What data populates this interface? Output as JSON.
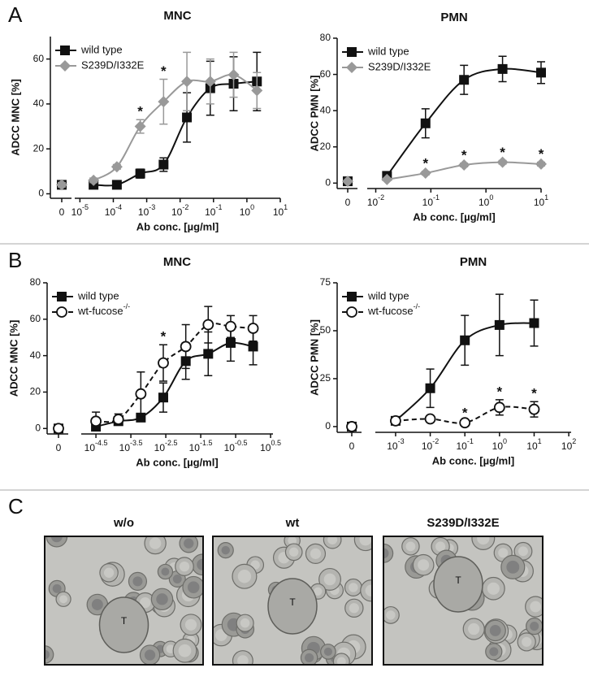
{
  "panel_labels": [
    "A",
    "B",
    "C"
  ],
  "chart_data": [
    {
      "type": "line",
      "title": "MNC",
      "x_label": "Ab conc. [µg/ml]",
      "y_label": "ADCC MNC [%]",
      "x_scale": "log",
      "legend": "upper left",
      "x": [
        0,
        2.56e-05,
        0.000128,
        0.00064,
        0.0032,
        0.016,
        0.08,
        0.4,
        2
      ],
      "xlim": [
        7e-06,
        10
      ],
      "xticks": [
        0,
        {
          "value": 1e-05,
          "label": "10-5"
        },
        {
          "value": 0.0001,
          "label": "10-4"
        },
        {
          "value": 0.001,
          "label": "10-3"
        },
        {
          "value": 0.01,
          "label": "10-2"
        },
        {
          "value": 0.1,
          "label": "10-1"
        },
        {
          "value": 1,
          "label": "100"
        },
        {
          "value": 10,
          "label": "101"
        }
      ],
      "ylim": [
        -2,
        70
      ],
      "yticks": [
        0,
        20,
        40,
        60
      ],
      "series": [
        {
          "name": "wild type",
          "color": "#111111",
          "marker": "square",
          "dash": false,
          "values": [
            4,
            4,
            4,
            9,
            13,
            34,
            47,
            49,
            50
          ],
          "errors": [
            1,
            1,
            1,
            2,
            3,
            11,
            12,
            12,
            13
          ]
        },
        {
          "name": "S239D/I332E",
          "color": "#999999",
          "marker": "diamond",
          "dash": false,
          "values": [
            4,
            6,
            12,
            30,
            41,
            50,
            50,
            53,
            46
          ],
          "errors": [
            1,
            1,
            1,
            3,
            10,
            13,
            10,
            10,
            8
          ],
          "significance": [
            null,
            null,
            null,
            "*",
            "*",
            null,
            null,
            null,
            null
          ]
        }
      ]
    },
    {
      "type": "line",
      "title": "PMN",
      "x_label": "Ab conc. [µg/ml]",
      "y_label": "ADCC PMN [%]",
      "x_scale": "log",
      "legend": "upper left",
      "x": [
        0,
        0.016,
        0.08,
        0.4,
        2,
        10
      ],
      "xlim": [
        0.007,
        10
      ],
      "xticks": [
        0,
        {
          "value": 0.01,
          "label": "10-2"
        },
        {
          "value": 0.1,
          "label": "10-1"
        },
        {
          "value": 1,
          "label": "100"
        },
        {
          "value": 10,
          "label": "101"
        }
      ],
      "ylim": [
        -3,
        80
      ],
      "yticks": [
        0,
        20,
        40,
        60,
        80
      ],
      "series": [
        {
          "name": "wild type",
          "color": "#111111",
          "marker": "square",
          "dash": false,
          "values": [
            1,
            4,
            33,
            57,
            63,
            61
          ],
          "errors": [
            1,
            1,
            8,
            8,
            7,
            6
          ]
        },
        {
          "name": "S239D/I332E",
          "color": "#999999",
          "marker": "diamond",
          "dash": false,
          "values": [
            1,
            2,
            5.5,
            10,
            11.5,
            10.5
          ],
          "errors": [
            0.5,
            0.5,
            1,
            1,
            1,
            1
          ],
          "significance": [
            null,
            null,
            "*",
            "*",
            "*",
            "*"
          ]
        }
      ]
    },
    {
      "type": "line",
      "title": "MNC",
      "x_label": "Ab conc. [µg/ml]",
      "y_label": "ADCC MNC [%]",
      "x_scale": "log",
      "legend": "upper left",
      "x": [
        0,
        3.16e-05,
        0.000139,
        0.00061,
        0.00268,
        0.0118,
        0.0518,
        0.228,
        1
      ],
      "xlim": [
        1.2e-05,
        3.7
      ],
      "xticks": [
        0,
        {
          "value": 3.16228e-05,
          "label": "10-4.5"
        },
        {
          "value": 0.000316228,
          "label": "10-3.5"
        },
        {
          "value": 0.00316228,
          "label": "10-2.5"
        },
        {
          "value": 0.0316228,
          "label": "10-1.5"
        },
        {
          "value": 0.316228,
          "label": "10-0.5"
        },
        {
          "value": 3.16228,
          "label": "100.5"
        }
      ],
      "ylim": [
        -3,
        80
      ],
      "yticks": [
        0,
        20,
        40,
        60,
        80
      ],
      "series": [
        {
          "name": "wild type",
          "color": "#111111",
          "marker": "square",
          "dash": false,
          "values": [
            0,
            1,
            4,
            6,
            17,
            37,
            41,
            47,
            45
          ],
          "errors": [
            1,
            1,
            2,
            2,
            8,
            10,
            12,
            10,
            10
          ]
        },
        {
          "name": "wt-fucose-/-",
          "color": "#111111",
          "marker": "circle",
          "dash": true,
          "values": [
            0,
            4,
            5,
            19,
            36,
            45,
            57,
            56,
            55
          ],
          "errors": [
            1,
            5,
            3,
            12,
            10,
            12,
            10,
            6,
            7
          ],
          "significance": [
            null,
            null,
            null,
            null,
            "*",
            null,
            null,
            null,
            null
          ]
        }
      ]
    },
    {
      "type": "line",
      "title": "PMN",
      "x_label": "Ab conc. [µg/ml]",
      "y_label": "ADCC PMN [%]",
      "x_scale": "log",
      "legend": "upper left",
      "x": [
        0,
        0.001,
        0.01,
        0.1,
        1,
        10
      ],
      "xlim": [
        0.00026,
        117
      ],
      "xticks": [
        0,
        {
          "value": 0.001,
          "label": "10-3"
        },
        {
          "value": 0.01,
          "label": "10-2"
        },
        {
          "value": 0.1,
          "label": "10-1"
        },
        {
          "value": 1,
          "label": "100"
        },
        {
          "value": 10,
          "label": "101"
        },
        {
          "value": 100,
          "label": "102"
        }
      ],
      "ylim": [
        -3,
        75
      ],
      "yticks": [
        0,
        25,
        50,
        75
      ],
      "series": [
        {
          "name": "wild type",
          "color": "#111111",
          "marker": "square",
          "dash": false,
          "values": [
            0,
            3,
            20,
            45,
            53,
            54
          ],
          "errors": [
            1,
            1,
            10,
            13,
            16,
            12
          ]
        },
        {
          "name": "wt-fucose-/-",
          "color": "#111111",
          "marker": "circle",
          "dash": true,
          "values": [
            0,
            3,
            4,
            2,
            10,
            9
          ],
          "errors": [
            1,
            1,
            1,
            1,
            4,
            4
          ],
          "significance": [
            null,
            null,
            null,
            "*",
            "*",
            "*"
          ]
        }
      ]
    }
  ],
  "micrographs": [
    {
      "title": "w/o",
      "label": "T"
    },
    {
      "title": "wt",
      "label": "T"
    },
    {
      "title": "S239D/I332E",
      "label": "T"
    }
  ]
}
